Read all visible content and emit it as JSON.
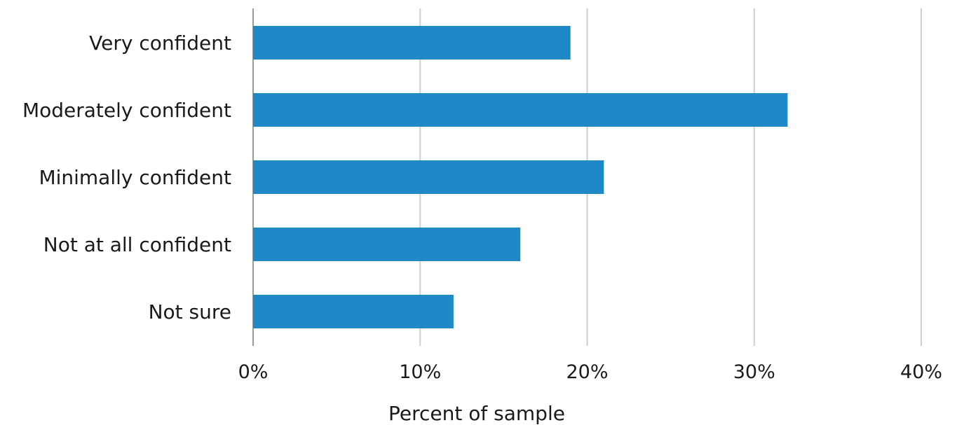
{
  "chart_data": {
    "type": "bar",
    "orientation": "horizontal",
    "categories": [
      "Very confident",
      "Moderately confident",
      "Minimally confident",
      "Not at all confident",
      "Not sure"
    ],
    "values": [
      19,
      32,
      21,
      16,
      12
    ],
    "xlabel": "Percent of sample",
    "ylabel": "",
    "xlim": [
      0,
      40
    ],
    "x_ticks": [
      0,
      10,
      20,
      30,
      40
    ],
    "x_tick_labels": [
      "0%",
      "10%",
      "20%",
      "30%",
      "40%"
    ],
    "grid": "vertical",
    "bar_color": "#1f88c6"
  }
}
